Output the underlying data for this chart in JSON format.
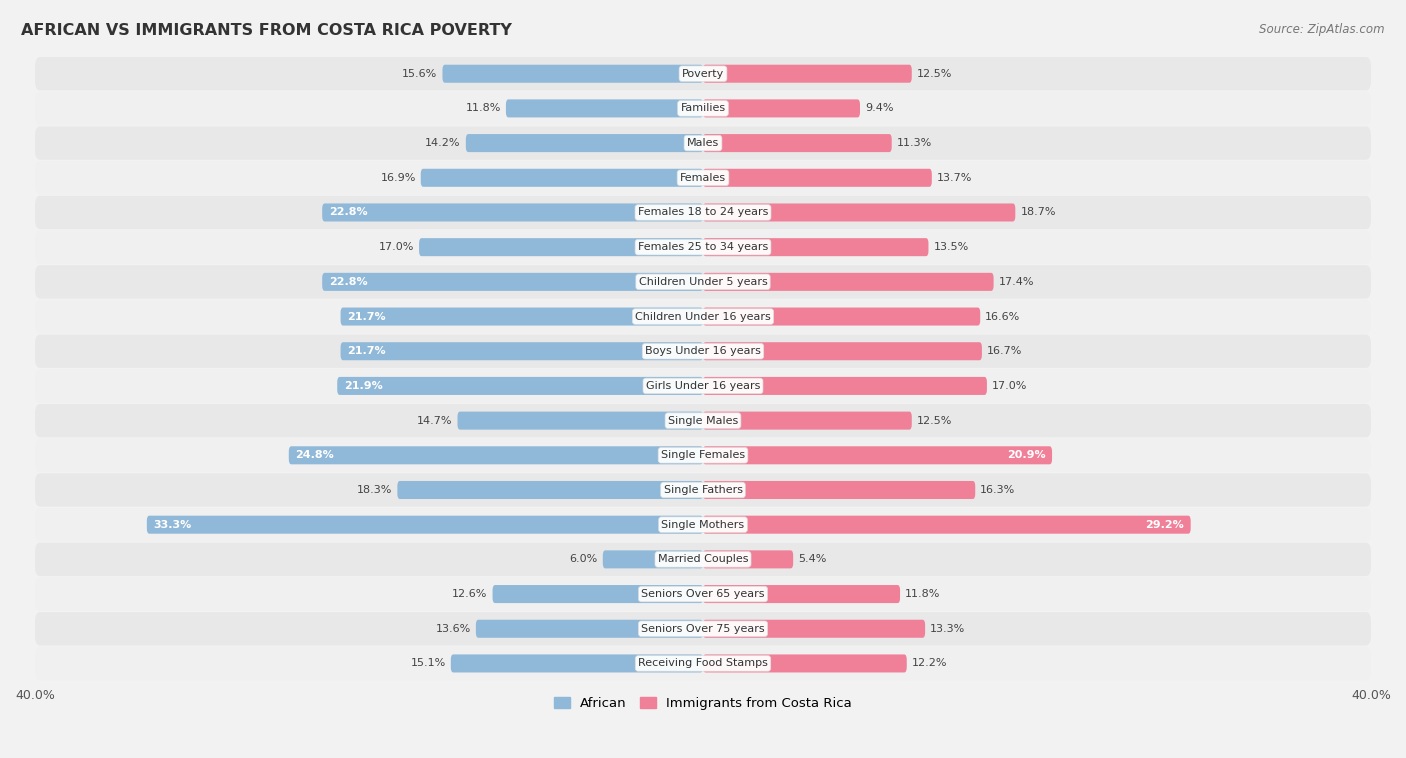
{
  "title": "AFRICAN VS IMMIGRANTS FROM COSTA RICA POVERTY",
  "source": "Source: ZipAtlas.com",
  "categories": [
    "Poverty",
    "Families",
    "Males",
    "Females",
    "Females 18 to 24 years",
    "Females 25 to 34 years",
    "Children Under 5 years",
    "Children Under 16 years",
    "Boys Under 16 years",
    "Girls Under 16 years",
    "Single Males",
    "Single Females",
    "Single Fathers",
    "Single Mothers",
    "Married Couples",
    "Seniors Over 65 years",
    "Seniors Over 75 years",
    "Receiving Food Stamps"
  ],
  "african": [
    15.6,
    11.8,
    14.2,
    16.9,
    22.8,
    17.0,
    22.8,
    21.7,
    21.7,
    21.9,
    14.7,
    24.8,
    18.3,
    33.3,
    6.0,
    12.6,
    13.6,
    15.1
  ],
  "costa_rica": [
    12.5,
    9.4,
    11.3,
    13.7,
    18.7,
    13.5,
    17.4,
    16.6,
    16.7,
    17.0,
    12.5,
    20.9,
    16.3,
    29.2,
    5.4,
    11.8,
    13.3,
    12.2
  ],
  "african_color": "#90b8d8",
  "costa_rica_color": "#f08098",
  "african_color_light": "#aac8e4",
  "costa_rica_color_light": "#f4b0c0",
  "bg_color": "#f2f2f2",
  "row_color_even": "#e8e8e8",
  "row_color_odd": "#f0f0f0",
  "axis_max": 40.0,
  "bar_height": 0.52,
  "legend_african": "African",
  "legend_costa_rica": "Immigrants from Costa Rica",
  "label_inside_threshold": 20.0,
  "bottom_tick_labels": [
    "40.0%",
    "40.0%"
  ]
}
